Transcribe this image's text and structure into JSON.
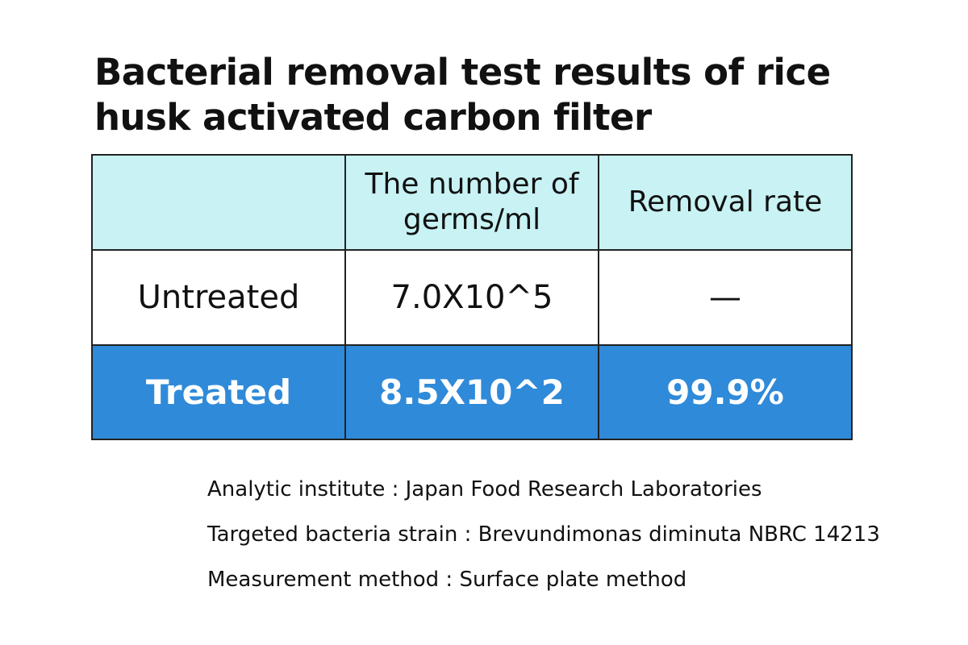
{
  "title": "Bacterial removal test results of rice husk activated carbon filter",
  "table": {
    "header": [
      "The number of germs/ml",
      "Removal rate"
    ],
    "rows": [
      [
        "Untreated",
        "7.0X10^5",
        "—"
      ],
      [
        "Treated",
        "8.5X10^2",
        "99.9%"
      ]
    ]
  },
  "notes": [
    "Analytic institute : Japan Food Research Laboratories",
    "Targeted bacteria strain : Brevundimonas diminuta NBRC 14213",
    "Measurement method : Surface plate method"
  ]
}
